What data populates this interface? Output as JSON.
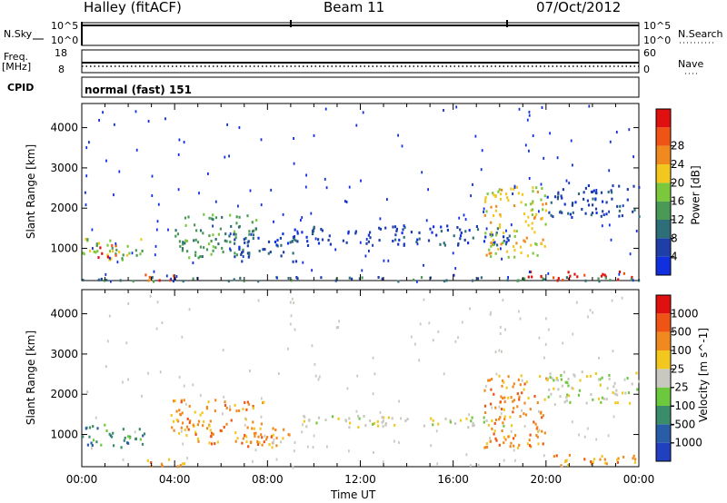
{
  "header": {
    "station": "Halley (fitACF)",
    "beam": "Beam 11",
    "date": "07/Oct/2012"
  },
  "top_panels": {
    "nsky_label": "N.Sky",
    "nsky_ticks": [
      "10^5",
      "10^0"
    ],
    "nsearch_label": "N.Search",
    "nsearch_ticks": [
      "10^5",
      "10^0"
    ],
    "freq_label": "Freq.",
    "freq_unit": "[MHz]",
    "freq_ticks": [
      "18",
      "8"
    ],
    "nave_label": "Nave",
    "nave_ticks": [
      "60",
      "0"
    ],
    "cpid_label": "CPID",
    "cpid_value": "normal (fast) 151"
  },
  "chart_data": [
    {
      "type": "heatmap",
      "name": "power",
      "ylabel": "Slant Range [km]",
      "yticks": [
        "1000",
        "2000",
        "3000",
        "4000"
      ],
      "ylim": [
        200,
        4600
      ],
      "xlim_hours": [
        0,
        24
      ],
      "colorbar_label": "Power [dB]",
      "colorbar_ticks": [
        "4",
        "8",
        "12",
        "16",
        "20",
        "24",
        "28"
      ],
      "colors": [
        "#1030e0",
        "#1e3fa8",
        "#2e6e78",
        "#4a9a55",
        "#7cc83c",
        "#f2c81e",
        "#f08a1e",
        "#f05414",
        "#e01010"
      ],
      "regions": [
        {
          "t0": 0.0,
          "t1": 2.6,
          "r0": 700,
          "r1": 1300,
          "level": 4
        },
        {
          "t0": 0.6,
          "t1": 1.6,
          "r0": 800,
          "r1": 1150,
          "level": 8
        },
        {
          "t0": 2.7,
          "t1": 4.4,
          "r0": 220,
          "r1": 420,
          "level": 7
        },
        {
          "t0": 4.0,
          "t1": 7.5,
          "r0": 800,
          "r1": 1900,
          "level": 3
        },
        {
          "t0": 6.5,
          "t1": 9.2,
          "r0": 700,
          "r1": 1400,
          "level": 1
        },
        {
          "t0": 9.0,
          "t1": 18.5,
          "r0": 1100,
          "r1": 1600,
          "level": 1
        },
        {
          "t0": 17.3,
          "t1": 20.0,
          "r0": 800,
          "r1": 2600,
          "level": 5
        },
        {
          "t0": 19.2,
          "t1": 24.0,
          "r0": 230,
          "r1": 450,
          "level": 8
        },
        {
          "t0": 20.0,
          "t1": 24.0,
          "r0": 1800,
          "r1": 2600,
          "level": 1
        },
        {
          "t0": 0.0,
          "t1": 24.0,
          "r0": 210,
          "r1": 320,
          "level": 2
        }
      ]
    },
    {
      "type": "heatmap",
      "name": "velocity",
      "ylabel": "Slant Range [km]",
      "yticks": [
        "1000",
        "2000",
        "3000",
        "4000"
      ],
      "ylim": [
        200,
        4600
      ],
      "xlabel": "Time UT",
      "xticks": [
        "00:00",
        "04:00",
        "08:00",
        "12:00",
        "16:00",
        "20:00",
        "00:00"
      ],
      "xlim_hours": [
        0,
        24
      ],
      "colorbar_label": "Velocity [m s^-1]",
      "colorbar_ticks": [
        "1000",
        "500",
        "100",
        "25",
        "-25",
        "-100",
        "-500",
        "-1000"
      ],
      "colors": [
        "#2040c0",
        "#2a5da8",
        "#3a8c6a",
        "#6cc83c",
        "#c8c8c0",
        "#f2c81e",
        "#f08a1e",
        "#f05414",
        "#e01010"
      ],
      "regions": [
        {
          "t0": 0.0,
          "t1": 2.7,
          "r0": 700,
          "r1": 1300,
          "level": 2
        },
        {
          "t0": 2.4,
          "t1": 4.6,
          "r0": 220,
          "r1": 420,
          "level": 6
        },
        {
          "t0": 3.8,
          "t1": 7.8,
          "r0": 800,
          "r1": 1900,
          "level": 6
        },
        {
          "t0": 6.5,
          "t1": 9.0,
          "r0": 700,
          "r1": 1200,
          "level": 6
        },
        {
          "t0": 9.5,
          "t1": 18.5,
          "r0": 1200,
          "r1": 1500,
          "level": 4
        },
        {
          "t0": 17.3,
          "t1": 20.0,
          "r0": 700,
          "r1": 2500,
          "level": 6
        },
        {
          "t0": 19.8,
          "t1": 24.0,
          "r0": 240,
          "r1": 520,
          "level": 6
        },
        {
          "t0": 20.0,
          "t1": 24.0,
          "r0": 1800,
          "r1": 2600,
          "level": 4
        }
      ]
    }
  ]
}
